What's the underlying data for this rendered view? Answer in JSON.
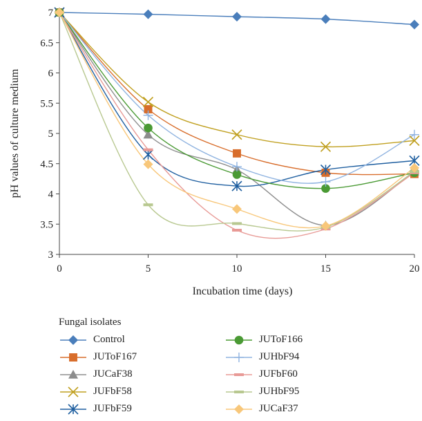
{
  "chart_data": {
    "type": "line",
    "xlabel": "Incubation time (days)",
    "ylabel": "pH values of culture medium",
    "x": [
      0,
      5,
      10,
      15,
      20
    ],
    "xlim": [
      0,
      20
    ],
    "ylim": [
      3,
      7
    ],
    "xticks": [
      "0",
      "5",
      "10",
      "15",
      "20"
    ],
    "yticks": [
      "3",
      "3.5",
      "4",
      "4.5",
      "5",
      "5.5",
      "6",
      "6.5",
      "7"
    ],
    "grid": false,
    "legend_title": "Fungal isolates",
    "legend_position": "bottom",
    "series": [
      {
        "name": "Control",
        "values": [
          7.0,
          6.97,
          6.93,
          6.89,
          6.8
        ],
        "color": "#4a7ebb",
        "marker": "diamond"
      },
      {
        "name": "JUToF167",
        "values": [
          7.0,
          5.4,
          4.67,
          4.35,
          4.33
        ],
        "color": "#d86d2b",
        "marker": "square"
      },
      {
        "name": "JUCaF38",
        "values": [
          7.0,
          4.98,
          4.4,
          3.48,
          4.37
        ],
        "color": "#8d8d8d",
        "marker": "triangle"
      },
      {
        "name": "JUFbF58",
        "values": [
          7.0,
          5.52,
          4.98,
          4.78,
          4.88
        ],
        "color": "#c0a020",
        "marker": "x"
      },
      {
        "name": "JUFbF59",
        "values": [
          7.0,
          4.65,
          4.13,
          4.4,
          4.55
        ],
        "color": "#1f5fa0",
        "marker": "star"
      },
      {
        "name": "JUToF166",
        "values": [
          7.0,
          5.09,
          4.32,
          4.09,
          4.35
        ],
        "color": "#4a9a34",
        "marker": "circle"
      },
      {
        "name": "JUHbF94",
        "values": [
          7.0,
          5.3,
          4.45,
          4.2,
          4.98
        ],
        "color": "#8fb3e0",
        "marker": "plus"
      },
      {
        "name": "JUFbF60",
        "values": [
          7.0,
          4.73,
          3.4,
          3.42,
          4.35
        ],
        "color": "#e89a96",
        "marker": "dash"
      },
      {
        "name": "JUHbF95",
        "values": [
          7.0,
          3.82,
          3.51,
          3.45,
          4.37
        ],
        "color": "#b8c890",
        "marker": "dash"
      },
      {
        "name": "JUCaF37",
        "values": [
          7.0,
          4.49,
          3.75,
          3.47,
          4.43
        ],
        "color": "#f8c77a",
        "marker": "diamond"
      }
    ]
  }
}
